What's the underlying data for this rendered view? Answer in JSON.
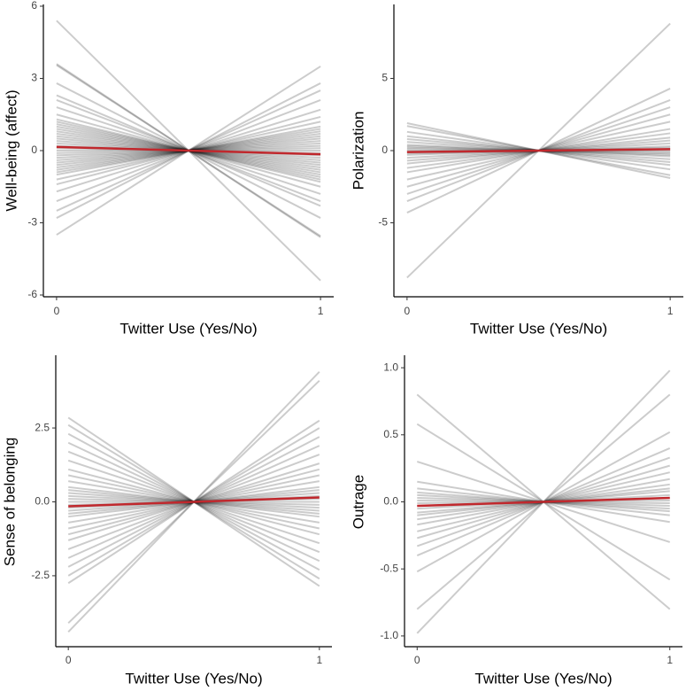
{
  "chart_data": [
    {
      "type": "line",
      "xlabel": "Twitter Use (Yes/No)",
      "ylabel": "Well-being (affect)",
      "x": [
        0,
        1
      ],
      "xlim": [
        -0.05,
        1.05
      ],
      "xticks": [
        0,
        1
      ],
      "ylim": [
        -6,
        6
      ],
      "yticks": [
        -6,
        -3,
        0,
        3,
        6
      ],
      "line_color": "#000000",
      "line_opacity": 0.2,
      "series": [
        {
          "values": [
            5.4,
            -5.4
          ]
        },
        {
          "values": [
            3.6,
            -3.6
          ]
        },
        {
          "values": [
            3.55,
            -3.55
          ]
        },
        {
          "values": [
            2.8,
            -2.8
          ]
        },
        {
          "values": [
            2.3,
            -2.3
          ]
        },
        {
          "values": [
            2.1,
            -2.1
          ]
        },
        {
          "values": [
            1.8,
            -1.8
          ]
        },
        {
          "values": [
            1.5,
            -1.5
          ]
        },
        {
          "values": [
            1.3,
            -1.3
          ]
        },
        {
          "values": [
            1.2,
            -1.2
          ]
        },
        {
          "values": [
            1.1,
            -1.1
          ]
        },
        {
          "values": [
            1.0,
            -1.0
          ]
        },
        {
          "values": [
            0.9,
            -0.9
          ]
        },
        {
          "values": [
            0.8,
            -0.8
          ]
        },
        {
          "values": [
            0.7,
            -0.7
          ]
        },
        {
          "values": [
            0.6,
            -0.6
          ]
        },
        {
          "values": [
            0.5,
            -0.5
          ]
        },
        {
          "values": [
            0.4,
            -0.4
          ]
        },
        {
          "values": [
            0.3,
            -0.3
          ]
        },
        {
          "values": [
            0.2,
            -0.2
          ]
        },
        {
          "values": [
            0.1,
            -0.1
          ]
        },
        {
          "values": [
            0,
            0
          ]
        },
        {
          "values": [
            -0.1,
            0.1
          ]
        },
        {
          "values": [
            -0.2,
            0.2
          ]
        },
        {
          "values": [
            -0.3,
            0.3
          ]
        },
        {
          "values": [
            -0.4,
            0.4
          ]
        },
        {
          "values": [
            -0.5,
            0.5
          ]
        },
        {
          "values": [
            -0.6,
            0.6
          ]
        },
        {
          "values": [
            -0.7,
            0.7
          ]
        },
        {
          "values": [
            -0.8,
            0.8
          ]
        },
        {
          "values": [
            -0.9,
            0.9
          ]
        },
        {
          "values": [
            -1.0,
            1.0
          ]
        },
        {
          "values": [
            -1.2,
            1.2
          ]
        },
        {
          "values": [
            -1.4,
            1.4
          ]
        },
        {
          "values": [
            -1.7,
            1.7
          ]
        },
        {
          "values": [
            -2.1,
            2.1
          ]
        },
        {
          "values": [
            -2.5,
            2.5
          ]
        },
        {
          "values": [
            -2.8,
            2.8
          ]
        },
        {
          "values": [
            -3.5,
            3.5
          ]
        }
      ],
      "mean": {
        "color": "#c0282d",
        "values": [
          0.15,
          -0.15
        ]
      }
    },
    {
      "type": "line",
      "xlabel": "Twitter Use (Yes/No)",
      "ylabel": "Polarization",
      "x": [
        0,
        1
      ],
      "xlim": [
        -0.05,
        1.05
      ],
      "xticks": [
        0,
        1
      ],
      "ylim": [
        -10,
        10
      ],
      "yticks": [
        -5,
        0,
        5
      ],
      "line_color": "#000000",
      "line_opacity": 0.2,
      "series": [
        {
          "values": [
            1.9,
            -1.9
          ]
        },
        {
          "values": [
            1.7,
            -1.7
          ]
        },
        {
          "values": [
            1.3,
            -1.3
          ]
        },
        {
          "values": [
            1.0,
            -1.0
          ]
        },
        {
          "values": [
            0.8,
            -0.8
          ]
        },
        {
          "values": [
            0.6,
            -0.6
          ]
        },
        {
          "values": [
            0.4,
            -0.4
          ]
        },
        {
          "values": [
            0.3,
            -0.3
          ]
        },
        {
          "values": [
            0.2,
            -0.2
          ]
        },
        {
          "values": [
            0.1,
            -0.1
          ]
        },
        {
          "values": [
            0,
            0
          ]
        },
        {
          "values": [
            -0.1,
            0.1
          ]
        },
        {
          "values": [
            -0.2,
            0.2
          ]
        },
        {
          "values": [
            -0.3,
            0.3
          ]
        },
        {
          "values": [
            -0.5,
            0.5
          ]
        },
        {
          "values": [
            -0.7,
            0.7
          ]
        },
        {
          "values": [
            -0.9,
            0.9
          ]
        },
        {
          "values": [
            -1.2,
            1.2
          ]
        },
        {
          "values": [
            -1.5,
            1.5
          ]
        },
        {
          "values": [
            -2.0,
            2.0
          ]
        },
        {
          "values": [
            -2.5,
            2.5
          ]
        },
        {
          "values": [
            -3.0,
            3.0
          ]
        },
        {
          "values": [
            -3.5,
            3.5
          ]
        },
        {
          "values": [
            -4.3,
            4.3
          ]
        },
        {
          "values": [
            -8.8,
            8.8
          ]
        }
      ],
      "mean": {
        "color": "#c0282d",
        "values": [
          -0.1,
          0.1
        ]
      }
    },
    {
      "type": "line",
      "xlabel": "Twitter Use (Yes/No)",
      "ylabel": "Sense of belonging",
      "x": [
        0,
        1
      ],
      "xlim": [
        -0.05,
        1.05
      ],
      "xticks": [
        0,
        1
      ],
      "ylim": [
        -4.9,
        4.9
      ],
      "yticks": [
        {
          "value": -2.5,
          "label": "-2.5"
        },
        {
          "value": 0,
          "label": "0.0"
        },
        {
          "value": 2.5,
          "label": "2.5"
        }
      ],
      "line_color": "#000000",
      "line_opacity": 0.2,
      "series": [
        {
          "values": [
            2.85,
            -2.85
          ]
        },
        {
          "values": [
            2.6,
            -2.6
          ]
        },
        {
          "values": [
            2.3,
            -2.3
          ]
        },
        {
          "values": [
            2.0,
            -2.0
          ]
        },
        {
          "values": [
            1.7,
            -1.7
          ]
        },
        {
          "values": [
            1.4,
            -1.4
          ]
        },
        {
          "values": [
            1.1,
            -1.1
          ]
        },
        {
          "values": [
            0.9,
            -0.9
          ]
        },
        {
          "values": [
            0.7,
            -0.7
          ]
        },
        {
          "values": [
            0.5,
            -0.5
          ]
        },
        {
          "values": [
            0.4,
            -0.4
          ]
        },
        {
          "values": [
            0.3,
            -0.3
          ]
        },
        {
          "values": [
            0.2,
            -0.2
          ]
        },
        {
          "values": [
            0.1,
            -0.1
          ]
        },
        {
          "values": [
            0,
            0
          ]
        },
        {
          "values": [
            -0.1,
            0.1
          ]
        },
        {
          "values": [
            -0.2,
            0.2
          ]
        },
        {
          "values": [
            -0.3,
            0.3
          ]
        },
        {
          "values": [
            -0.4,
            0.4
          ]
        },
        {
          "values": [
            -0.5,
            0.5
          ]
        },
        {
          "values": [
            -0.7,
            0.7
          ]
        },
        {
          "values": [
            -0.9,
            0.9
          ]
        },
        {
          "values": [
            -1.1,
            1.1
          ]
        },
        {
          "values": [
            -1.3,
            1.3
          ]
        },
        {
          "values": [
            -1.6,
            1.6
          ]
        },
        {
          "values": [
            -1.9,
            1.9
          ]
        },
        {
          "values": [
            -2.2,
            2.2
          ]
        },
        {
          "values": [
            -2.5,
            2.5
          ]
        },
        {
          "values": [
            -2.75,
            2.75
          ]
        },
        {
          "values": [
            -4.1,
            4.1
          ]
        },
        {
          "values": [
            -4.4,
            4.4
          ]
        }
      ],
      "mean": {
        "color": "#c0282d",
        "values": [
          -0.15,
          0.15
        ]
      }
    },
    {
      "type": "line",
      "xlabel": "Twitter Use (Yes/No)",
      "ylabel": "Outrage",
      "x": [
        0,
        1
      ],
      "xlim": [
        -0.05,
        1.05
      ],
      "xticks": [
        0,
        1
      ],
      "ylim": [
        -1.08,
        1.08
      ],
      "yticks": [
        {
          "value": -1,
          "label": "-1.0"
        },
        {
          "value": -0.5,
          "label": "-0.5"
        },
        {
          "value": 0,
          "label": "0.0"
        },
        {
          "value": 0.5,
          "label": "0.5"
        },
        {
          "value": 1,
          "label": "1.0"
        }
      ],
      "line_color": "#000000",
      "line_opacity": 0.2,
      "series": [
        {
          "values": [
            0.8,
            -0.8
          ]
        },
        {
          "values": [
            0.58,
            -0.58
          ]
        },
        {
          "values": [
            0.3,
            -0.3
          ]
        },
        {
          "values": [
            0.15,
            -0.15
          ]
        },
        {
          "values": [
            0.1,
            -0.1
          ]
        },
        {
          "values": [
            0.07,
            -0.07
          ]
        },
        {
          "values": [
            0.05,
            -0.05
          ]
        },
        {
          "values": [
            0.03,
            -0.03
          ]
        },
        {
          "values": [
            0.01,
            -0.01
          ]
        },
        {
          "values": [
            -0.01,
            0.01
          ]
        },
        {
          "values": [
            -0.03,
            0.03
          ]
        },
        {
          "values": [
            -0.05,
            0.05
          ]
        },
        {
          "values": [
            -0.08,
            0.08
          ]
        },
        {
          "values": [
            -0.1,
            0.1
          ]
        },
        {
          "values": [
            -0.13,
            0.13
          ]
        },
        {
          "values": [
            -0.17,
            0.17
          ]
        },
        {
          "values": [
            -0.22,
            0.22
          ]
        },
        {
          "values": [
            -0.27,
            0.27
          ]
        },
        {
          "values": [
            -0.33,
            0.33
          ]
        },
        {
          "values": [
            -0.4,
            0.4
          ]
        },
        {
          "values": [
            -0.52,
            0.52
          ]
        },
        {
          "values": [
            -0.8,
            0.8
          ]
        },
        {
          "values": [
            -0.98,
            0.98
          ]
        }
      ],
      "mean": {
        "color": "#c0282d",
        "values": [
          -0.03,
          0.03
        ]
      }
    }
  ]
}
